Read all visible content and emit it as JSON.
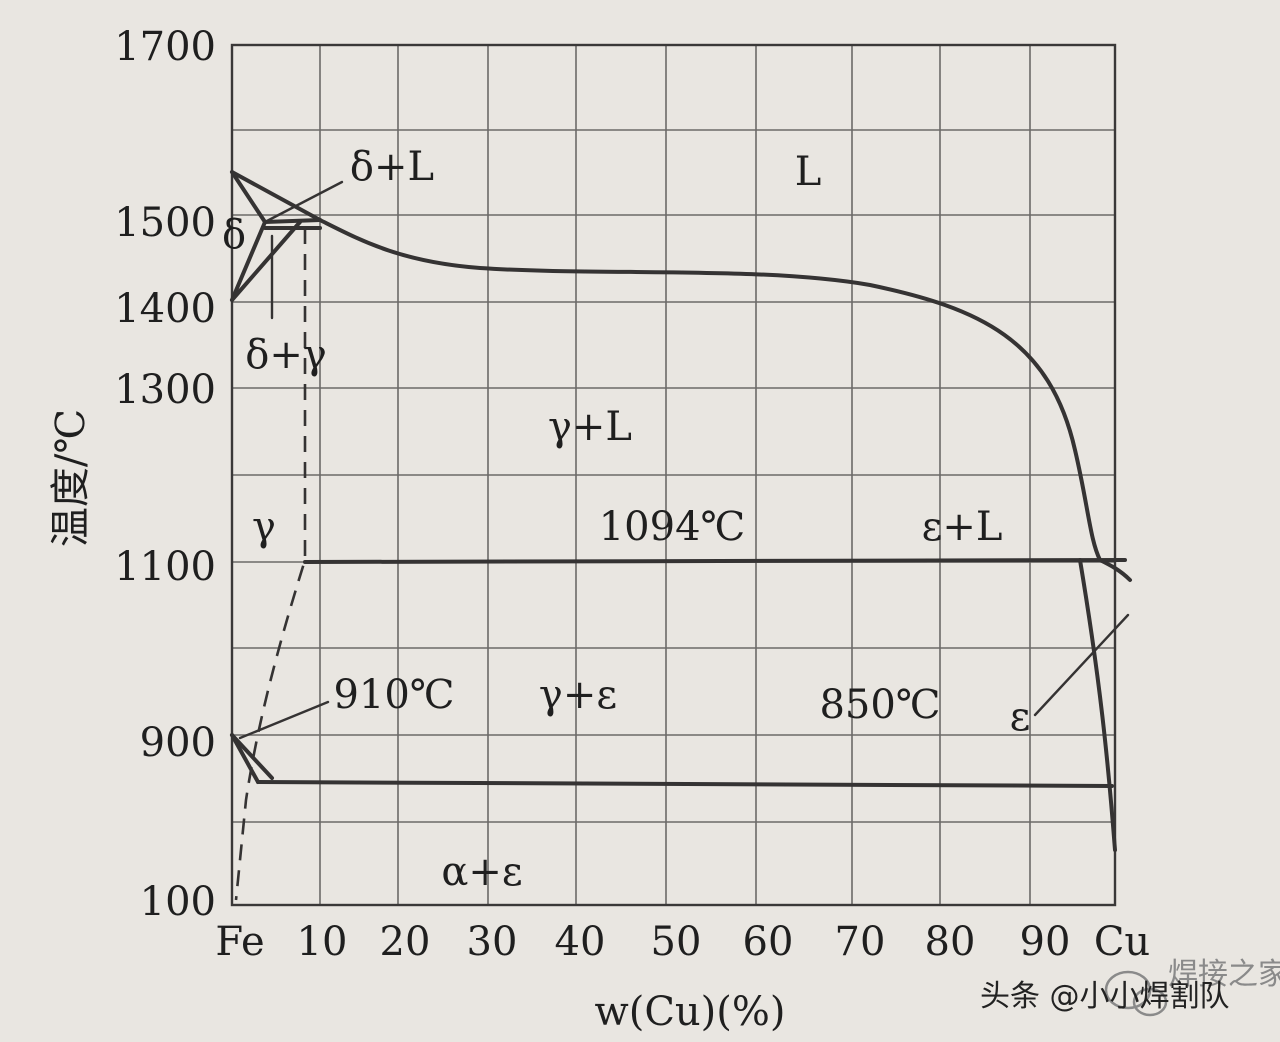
{
  "diagram": {
    "y_axis": {
      "title": "温度/℃",
      "tick_labels": [
        "1700",
        "1500",
        "1400",
        "1300",
        "1100",
        "900",
        "100"
      ]
    },
    "x_axis": {
      "title": "w(Cu)(%)",
      "tick_labels": [
        "Fe",
        "10",
        "20",
        "30",
        "40",
        "50",
        "60",
        "70",
        "80",
        "90",
        "Cu"
      ]
    },
    "regions": {
      "liquid": "L",
      "delta_plus_liquid": "δ+L",
      "delta": "δ",
      "delta_plus_gamma": "δ+γ",
      "gamma_plus_liquid": "γ+L",
      "gamma": "γ",
      "epsilon_plus_liquid": "ε+L",
      "gamma_plus_epsilon": "γ+ε",
      "epsilon": "ε",
      "alpha_plus_epsilon": "α+ε"
    },
    "isotherms": {
      "peritectic": "1094℃",
      "alpha_gamma": "910℃",
      "eutectoid": "850℃"
    }
  },
  "watermark": {
    "logo_text": "焊接之家",
    "caption": "头条 @小小焊割队"
  }
}
